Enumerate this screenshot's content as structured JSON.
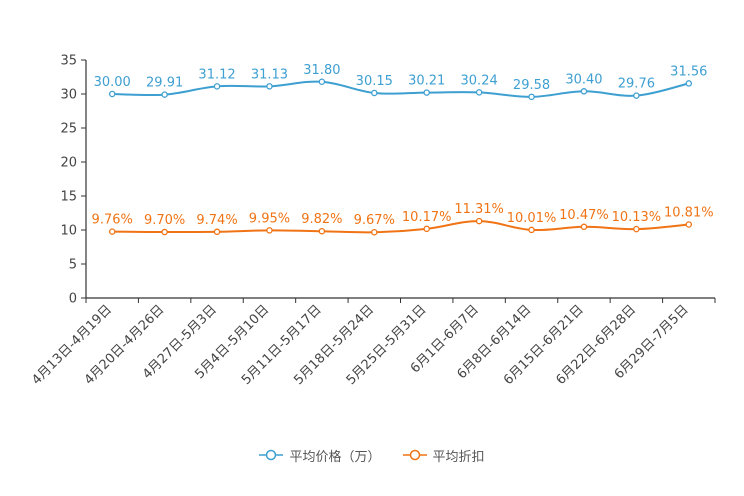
{
  "chart_data": {
    "type": "line",
    "title": "",
    "xlabel": "",
    "ylabel": "",
    "ylim": [
      0,
      35
    ],
    "yticks": [
      0,
      5,
      10,
      15,
      20,
      25,
      30,
      35
    ],
    "ytick_labels": [
      "0",
      "5",
      "10",
      "15",
      "20",
      "25",
      "30",
      "35"
    ],
    "categories": [
      "4月13日-4月19日",
      "4月20日-4月26日",
      "4月27日-5月3日",
      "5月4日-5月10日",
      "5月11日-5月17日",
      "5月18日-5月24日",
      "5月25日-5月31日",
      "6月1日-6月7日",
      "6月8日-6月14日",
      "6月15日-6月21日",
      "6月22日-6月28日",
      "6月29日-7月5日"
    ],
    "series": [
      {
        "name": "平均价格（万）",
        "color": "#3e9fd1",
        "values": [
          30.0,
          29.91,
          31.12,
          31.13,
          31.8,
          30.15,
          30.21,
          30.24,
          29.58,
          30.4,
          29.76,
          31.56
        ],
        "labels": [
          "30.00",
          "29.91",
          "31.12",
          "31.13",
          "31.80",
          "30.15",
          "30.21",
          "30.24",
          "29.58",
          "30.40",
          "29.76",
          "31.56"
        ]
      },
      {
        "name": "平均折扣",
        "color": "#f07415",
        "values": [
          9.76,
          9.7,
          9.74,
          9.95,
          9.82,
          9.67,
          10.17,
          11.31,
          10.01,
          10.47,
          10.13,
          10.81
        ],
        "labels": [
          "9.76%",
          "9.70%",
          "9.74%",
          "9.95%",
          "9.82%",
          "9.67%",
          "10.17%",
          "11.31%",
          "10.01%",
          "10.47%",
          "10.13%",
          "10.81%"
        ]
      }
    ],
    "legend_position": "bottom-center",
    "grid": false
  }
}
